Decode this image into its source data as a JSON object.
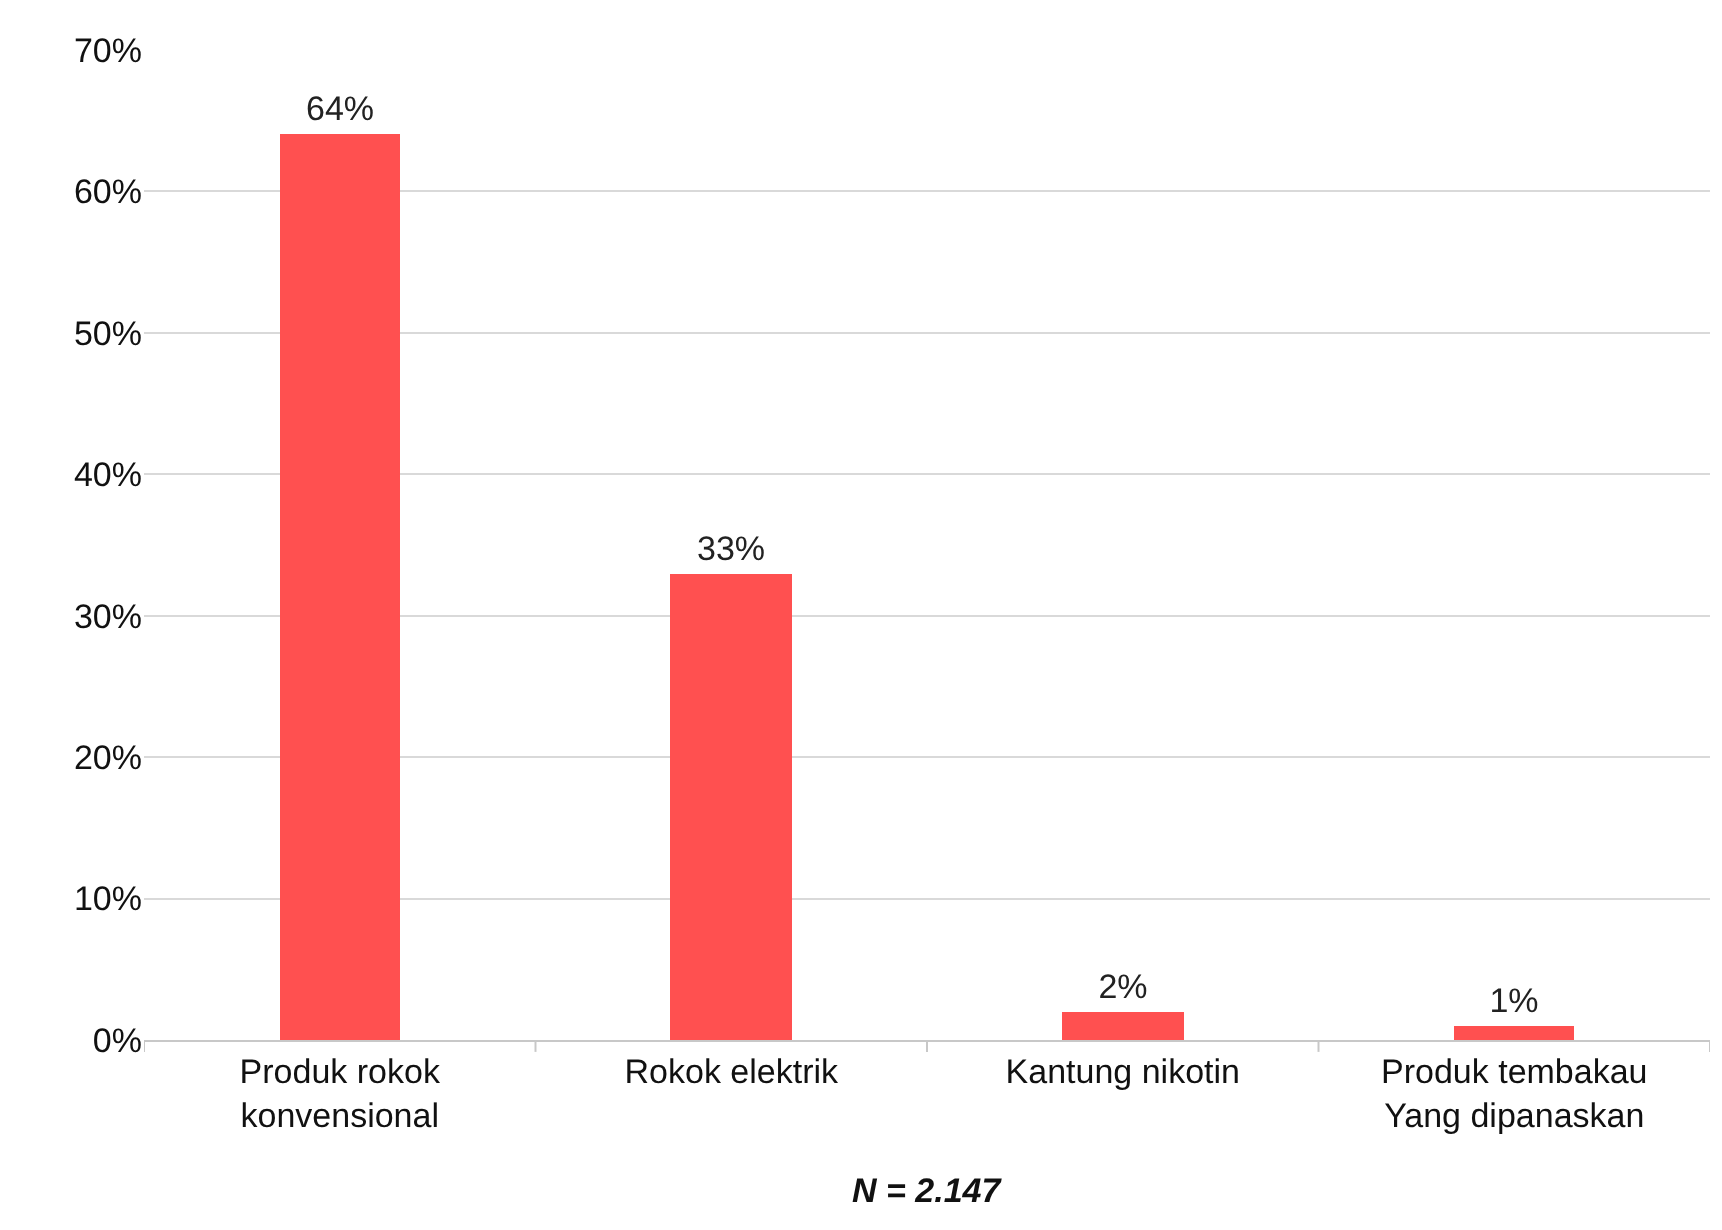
{
  "chart_data": {
    "type": "bar",
    "categories": [
      "Produk rokok\nkonvensional",
      "Rokok elektrik",
      "Kantung nikotin",
      "Produk tembakau\nYang dipanaskan"
    ],
    "values": [
      64,
      33,
      2,
      1
    ],
    "value_labels": [
      "64%",
      "33%",
      "2%",
      "1%"
    ],
    "color": "#ff5050",
    "ylim": [
      0,
      70
    ],
    "yticks": [
      {
        "value": 0,
        "label": "0%"
      },
      {
        "value": 10,
        "label": "10%"
      },
      {
        "value": 20,
        "label": "20%"
      },
      {
        "value": 30,
        "label": "30%"
      },
      {
        "value": 40,
        "label": "40%"
      },
      {
        "value": 50,
        "label": "50%"
      },
      {
        "value": 60,
        "label": "60%"
      },
      {
        "value": 70,
        "label": "70%"
      }
    ],
    "grid": "y",
    "annotations": [
      "N = 2.147"
    ]
  }
}
